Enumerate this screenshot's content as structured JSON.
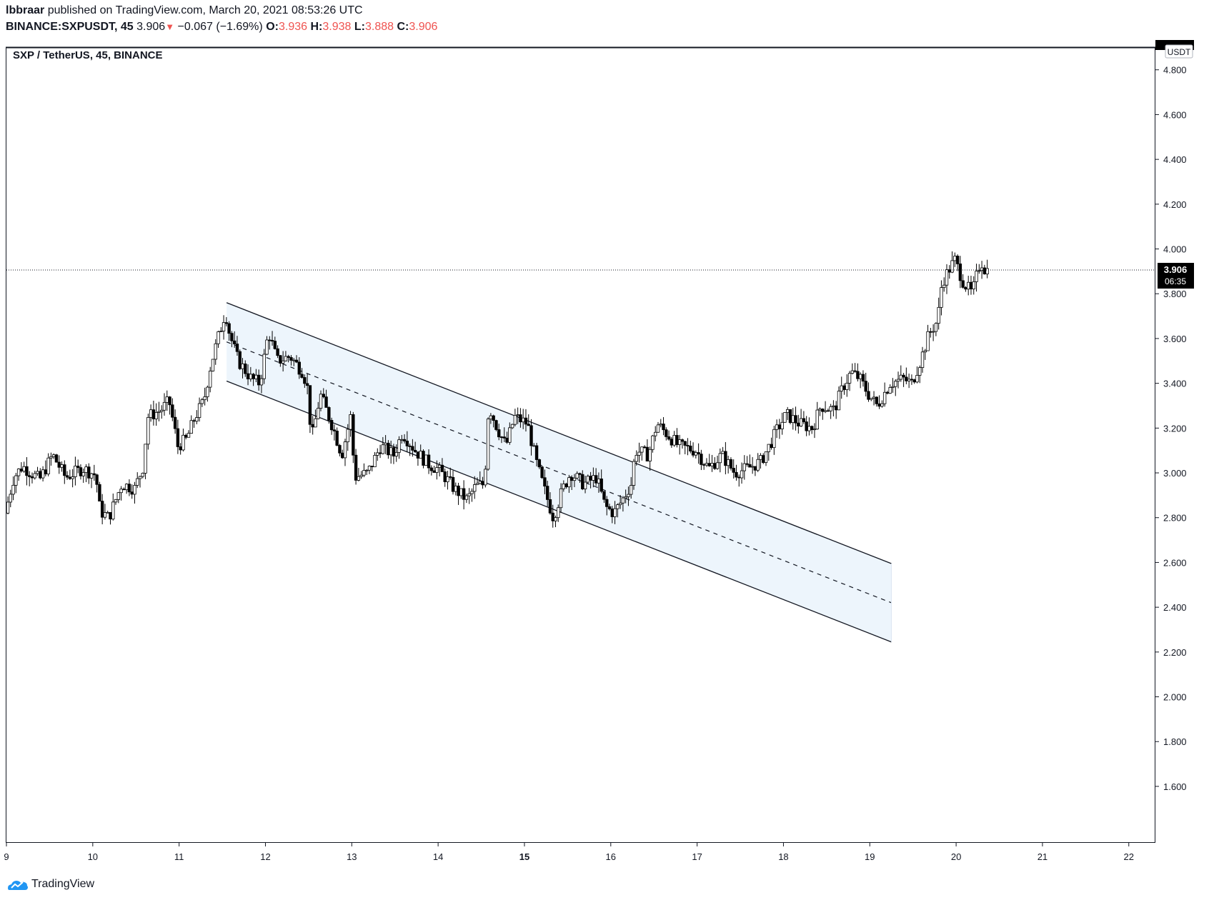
{
  "header": {
    "author": "lbbraar",
    "published_text": "published on TradingView.com, March 20, 2021 08:53:26 UTC",
    "symbol": "BINANCE:SXPUSDT, 45",
    "last": "3.906",
    "change": "−0.067 (−1.69%)",
    "o_label": "O:",
    "o_val": "3.936",
    "h_label": "H:",
    "h_val": "3.938",
    "l_label": "L:",
    "l_val": "3.888",
    "c_label": "C:",
    "c_val": "3.906"
  },
  "pane_title": "SXP / TetherUS, 45, BINANCE",
  "currency_badge": "USDT",
  "price_label": {
    "price": "3.906",
    "countdown": "06:35"
  },
  "footer": {
    "brand": "TradingView",
    "logo_icon": "tradingview-logo-icon"
  },
  "colors": {
    "up": "#ffffff",
    "down": "#000000",
    "channel_fill": "#eaf3fc",
    "negative": "#ef5350"
  },
  "chart_data": {
    "type": "candlestick",
    "title": "SXP / TetherUS, 45, BINANCE",
    "xlabel": "",
    "ylabel": "",
    "ylim": [
      1.43,
      5.0
    ],
    "xlim": [
      9.0,
      22.3
    ],
    "x_ticks": [
      {
        "v": 9,
        "label": "9"
      },
      {
        "v": 10,
        "label": "10"
      },
      {
        "v": 11,
        "label": "11"
      },
      {
        "v": 12,
        "label": "12"
      },
      {
        "v": 13,
        "label": "13"
      },
      {
        "v": 14,
        "label": "14"
      },
      {
        "v": 15,
        "label": "15",
        "bold": true
      },
      {
        "v": 16,
        "label": "16"
      },
      {
        "v": 17,
        "label": "17"
      },
      {
        "v": 18,
        "label": "18"
      },
      {
        "v": 19,
        "label": "19"
      },
      {
        "v": 20,
        "label": "20"
      },
      {
        "v": 21,
        "label": "21"
      },
      {
        "v": 22,
        "label": "22"
      }
    ],
    "y_ticks": [
      "1.600",
      "1.800",
      "2.000",
      "2.200",
      "2.400",
      "2.600",
      "2.800",
      "3.000",
      "3.200",
      "3.400",
      "3.600",
      "3.800",
      "4.000",
      "4.200",
      "4.400",
      "4.600",
      "4.800"
    ],
    "last_price": 3.906,
    "price_path": [
      [
        9.0,
        2.82
      ],
      [
        9.1,
        2.98
      ],
      [
        9.2,
        3.03
      ],
      [
        9.4,
        2.97
      ],
      [
        9.55,
        3.08
      ],
      [
        9.7,
        2.98
      ],
      [
        9.9,
        3.02
      ],
      [
        10.05,
        2.99
      ],
      [
        10.1,
        2.83
      ],
      [
        10.2,
        2.8
      ],
      [
        10.35,
        2.95
      ],
      [
        10.5,
        2.93
      ],
      [
        10.6,
        3.03
      ],
      [
        10.65,
        3.25
      ],
      [
        10.8,
        3.28
      ],
      [
        10.9,
        3.32
      ],
      [
        11.0,
        3.12
      ],
      [
        11.1,
        3.15
      ],
      [
        11.2,
        3.25
      ],
      [
        11.3,
        3.32
      ],
      [
        11.38,
        3.48
      ],
      [
        11.45,
        3.58
      ],
      [
        11.55,
        3.72
      ],
      [
        11.6,
        3.62
      ],
      [
        11.7,
        3.5
      ],
      [
        11.85,
        3.42
      ],
      [
        11.95,
        3.4
      ],
      [
        12.05,
        3.63
      ],
      [
        12.15,
        3.5
      ],
      [
        12.3,
        3.52
      ],
      [
        12.45,
        3.45
      ],
      [
        12.5,
        3.38
      ],
      [
        12.55,
        3.15
      ],
      [
        12.65,
        3.35
      ],
      [
        12.8,
        3.2
      ],
      [
        12.9,
        3.08
      ],
      [
        13.0,
        3.25
      ],
      [
        13.05,
        2.98
      ],
      [
        13.2,
        3.0
      ],
      [
        13.35,
        3.12
      ],
      [
        13.5,
        3.08
      ],
      [
        13.6,
        3.18
      ],
      [
        13.75,
        3.1
      ],
      [
        13.9,
        3.04
      ],
      [
        14.0,
        3.02
      ],
      [
        14.1,
        2.98
      ],
      [
        14.2,
        2.93
      ],
      [
        14.35,
        2.88
      ],
      [
        14.45,
        2.94
      ],
      [
        14.55,
        2.95
      ],
      [
        14.6,
        3.3
      ],
      [
        14.7,
        3.2
      ],
      [
        14.8,
        3.12
      ],
      [
        14.9,
        3.25
      ],
      [
        15.05,
        3.22
      ],
      [
        15.15,
        3.05
      ],
      [
        15.25,
        2.92
      ],
      [
        15.35,
        2.8
      ],
      [
        15.45,
        2.92
      ],
      [
        15.55,
        3.0
      ],
      [
        15.7,
        2.95
      ],
      [
        15.85,
        2.98
      ],
      [
        15.95,
        2.85
      ],
      [
        16.05,
        2.82
      ],
      [
        16.15,
        2.88
      ],
      [
        16.25,
        2.95
      ],
      [
        16.3,
        3.1
      ],
      [
        16.45,
        3.08
      ],
      [
        16.55,
        3.22
      ],
      [
        16.65,
        3.18
      ],
      [
        16.8,
        3.12
      ],
      [
        17.0,
        3.1
      ],
      [
        17.15,
        3.02
      ],
      [
        17.3,
        3.08
      ],
      [
        17.45,
        3.0
      ],
      [
        17.6,
        3.02
      ],
      [
        17.75,
        3.05
      ],
      [
        17.85,
        3.12
      ],
      [
        17.95,
        3.2
      ],
      [
        18.05,
        3.26
      ],
      [
        18.2,
        3.22
      ],
      [
        18.35,
        3.2
      ],
      [
        18.45,
        3.3
      ],
      [
        18.6,
        3.28
      ],
      [
        18.7,
        3.38
      ],
      [
        18.8,
        3.45
      ],
      [
        18.9,
        3.42
      ],
      [
        19.0,
        3.35
      ],
      [
        19.1,
        3.3
      ],
      [
        19.25,
        3.4
      ],
      [
        19.4,
        3.42
      ],
      [
        19.5,
        3.4
      ],
      [
        19.6,
        3.5
      ],
      [
        19.7,
        3.62
      ],
      [
        19.8,
        3.68
      ],
      [
        19.85,
        3.85
      ],
      [
        19.95,
        3.92
      ],
      [
        20.0,
        3.95
      ],
      [
        20.1,
        3.85
      ],
      [
        20.2,
        3.8
      ],
      [
        20.3,
        3.95
      ],
      [
        20.35,
        3.906
      ]
    ],
    "channel": {
      "upper": {
        "from": [
          11.55,
          3.76
        ],
        "to": [
          19.25,
          2.595
        ]
      },
      "lower": {
        "from": [
          11.55,
          3.41
        ],
        "to": [
          19.25,
          2.245
        ]
      },
      "mid_dashed": true
    }
  }
}
